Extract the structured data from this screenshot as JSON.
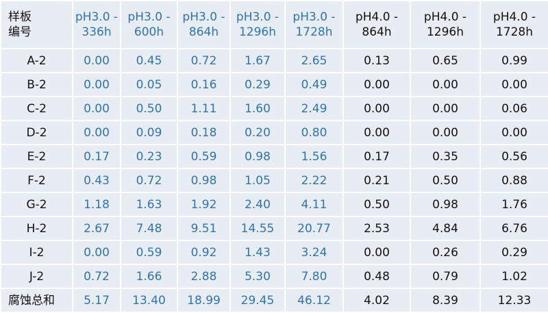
{
  "table": {
    "header": [
      [
        "样板",
        "编号"
      ],
      [
        "pH3.0 -",
        "336h"
      ],
      [
        "pH3.0 -",
        "600h"
      ],
      [
        "pH3.0 -",
        "864h"
      ],
      [
        "pH3.0 -",
        "1296h"
      ],
      [
        "pH3.0 -",
        "1728h"
      ],
      [
        "pH4.0 -",
        "864h"
      ],
      [
        "pH4.0 -",
        "1296h"
      ],
      [
        "pH4.0 -",
        "1728h"
      ]
    ],
    "rows": [
      [
        "A-2",
        "0.00",
        "0.45",
        "0.72",
        "1.67",
        "2.65",
        "0.13",
        "0.65",
        "0.99"
      ],
      [
        "B-2",
        "0.00",
        "0.05",
        "0.16",
        "0.29",
        "0.49",
        "0.00",
        "0.00",
        "0.00"
      ],
      [
        "C-2",
        "0.00",
        "0.50",
        "1.11",
        "1.60",
        "2.49",
        "0.00",
        "0.00",
        "0.06"
      ],
      [
        "D-2",
        "0.00",
        "0.09",
        "0.18",
        "0.20",
        "0.80",
        "0.00",
        "0.00",
        "0.00"
      ],
      [
        "E-2",
        "0.17",
        "0.23",
        "0.59",
        "0.98",
        "1.56",
        "0.17",
        "0.35",
        "0.56"
      ],
      [
        "F-2",
        "0.43",
        "0.72",
        "0.98",
        "1.05",
        "2.22",
        "0.21",
        "0.50",
        "0.88"
      ],
      [
        "G-2",
        "1.18",
        "1.63",
        "1.92",
        "2.40",
        "4.11",
        "0.50",
        "0.98",
        "1.76"
      ],
      [
        "H-2",
        "2.67",
        "7.48",
        "9.51",
        "14.55",
        "20.77",
        "2.53",
        "4.84",
        "6.76"
      ],
      [
        "I-2",
        "0.00",
        "0.59",
        "0.92",
        "1.43",
        "3.24",
        "0.00",
        "0.26",
        "0.29"
      ],
      [
        "J-2",
        "0.72",
        "1.66",
        "2.88",
        "5.30",
        "7.80",
        "0.48",
        "0.79",
        "1.02"
      ],
      [
        "腐蚀总和",
        "5.17",
        "13.40",
        "18.99",
        "29.45",
        "46.12",
        "4.02",
        "8.39",
        "12.33"
      ]
    ]
  }
}
